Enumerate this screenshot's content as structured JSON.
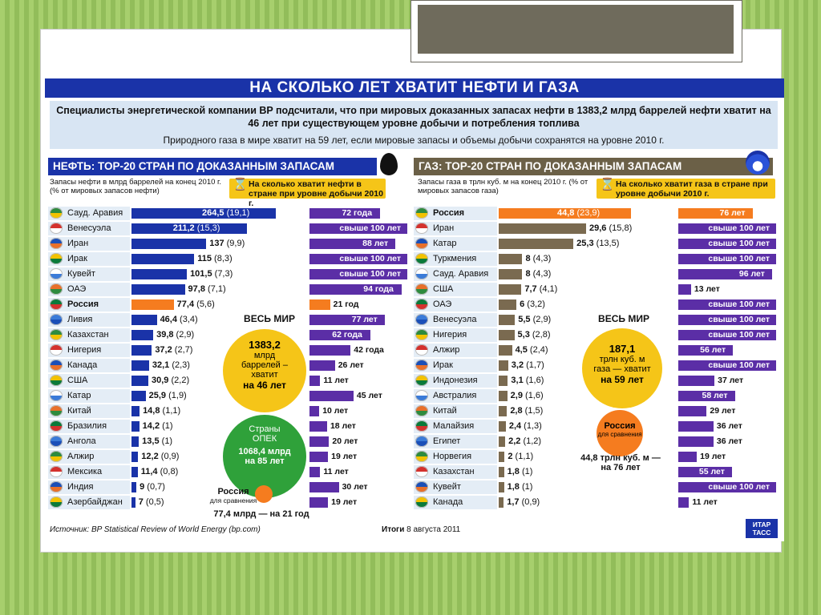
{
  "title": "НА СКОЛЬКО ЛЕТ ХВАТИТ НЕФТИ И ГАЗА",
  "intro": {
    "bold": "Специалисты энергетической компании BP подсчитали, что при мировых доказанных запасах нефти в 1383,2 млрд баррелей нефти хватит на 46 лет при существующем уровне добычи и потребления топлива",
    "plain": "Природного газа в мире хватит на 59 лет, если мировые запасы и объемы добычи сохранятся на уровне 2010 г."
  },
  "oil": {
    "header": "НЕФТЬ: TOP-20 СТРАН ПО ДОКАЗАННЫМ ЗАПАСАМ",
    "col_reserves": "Запасы нефти в млрд баррелей на конец 2010 г. (% от мировых запасов нефти)",
    "col_years": "На сколько хватит нефти в стране при уровне добычи 2010 г.",
    "world_label": "ВЕСЬ МИР",
    "world_circle": [
      "1383,2",
      "млрд",
      "баррелей –",
      "хватит",
      "на 46 лет"
    ],
    "opec_circle": [
      "Страны",
      "ОПЕК",
      "1068,4 млрд",
      "на 85 лет"
    ],
    "russia_compare": [
      "Россия",
      "для сравнения",
      "77,4 млрд — на 21 год"
    ]
  },
  "gas": {
    "header": "ГАЗ: TOP-20 СТРАН ПО ДОКАЗАННЫМ ЗАПАСАМ",
    "col_reserves": "Запасы газа в трлн куб. м на конец 2010 г. (% от мировых запасов газа)",
    "col_years": "На сколько хватит газа в стране при уровне добычи 2010 г.",
    "world_label": "ВЕСЬ МИР",
    "world_circle": [
      "187,1",
      "трлн куб. м",
      "газа — хватит",
      "на 59 лет"
    ],
    "russia_compare": [
      "Россия",
      "для сравнения",
      "44,8 трлн куб. м —",
      "на 76 лет"
    ]
  },
  "footer": {
    "source": "Источник: BP Statistical Review of World Energy (bp.com)",
    "pub_bold": "Итоги",
    "pub_date": "8 августа 2011",
    "agency": "ИТАР ТАСС"
  },
  "colors": {
    "blue": "#1a33a8",
    "orange": "#f57c1f",
    "purple": "#5b2ea6",
    "brown": "#7a6a50",
    "yellow": "#f5c518",
    "green": "#2fa13a"
  },
  "chart_data": [
    {
      "type": "bar",
      "title": "НЕФТЬ: TOP-20 СТРАН ПО ДОКАЗАННЫМ ЗАПАСАМ",
      "categories": [
        "Сауд. Аравия",
        "Венесуэла",
        "Иран",
        "Ирак",
        "Кувейт",
        "ОАЭ",
        "Россия",
        "Ливия",
        "Казахстан",
        "Нигерия",
        "Канада",
        "США",
        "Катар",
        "Китай",
        "Бразилия",
        "Ангола",
        "Алжир",
        "Мексика",
        "Индия",
        "Азербайджан"
      ],
      "series": [
        {
          "name": "Запасы нефти, млрд баррелей",
          "values": [
            264.5,
            211.2,
            137,
            115,
            101.5,
            97.8,
            77.4,
            46.4,
            39.8,
            37.2,
            32.1,
            30.9,
            25.9,
            14.8,
            14.2,
            13.5,
            12.2,
            11.4,
            9,
            7
          ],
          "labels": [
            "264,5",
            "211,2",
            "137",
            "115",
            "101,5",
            "97,8",
            "77,4",
            "46,4",
            "39,8",
            "37,2",
            "32,1",
            "30,9",
            "25,9",
            "14,8",
            "14,2",
            "13,5",
            "12,2",
            "11,4",
            "9",
            "7"
          ]
        },
        {
          "name": "% от мировых запасов",
          "values": [
            19.1,
            15.3,
            9.9,
            8.3,
            7.3,
            7.1,
            5.6,
            3.4,
            2.9,
            2.7,
            2.3,
            2.2,
            1.9,
            1.1,
            1,
            1,
            0.9,
            0.8,
            0.7,
            0.5
          ],
          "labels": [
            "(19,1)",
            "(15,3)",
            "(9,9)",
            "(8,3)",
            "(7,3)",
            "(7,1)",
            "(5,6)",
            "(3,4)",
            "(2,9)",
            "(2,7)",
            "(2,3)",
            "(2,2)",
            "(1,9)",
            "(1,1)",
            "(1)",
            "(1)",
            "(0,9)",
            "(0,8)",
            "(0,7)",
            "(0,5)"
          ]
        },
        {
          "name": "На сколько хватит, лет",
          "values": [
            72,
            100,
            88,
            100,
            100,
            94,
            21,
            77,
            62,
            42,
            26,
            11,
            45,
            10,
            18,
            20,
            19,
            11,
            30,
            19
          ],
          "labels": [
            "72 года",
            "свыше 100 лет",
            "88 лет",
            "свыше 100 лет",
            "свыше 100 лет",
            "94 года",
            "21 год",
            "77 лет",
            "62 года",
            "42 года",
            "26 лет",
            "11 лет",
            "45 лет",
            "10 лет",
            "18 лет",
            "20 лет",
            "19 лет",
            "11 лет",
            "30 лет",
            "19 лет"
          ]
        }
      ]
    },
    {
      "type": "bar",
      "title": "ГАЗ: TOP-20 СТРАН ПО ДОКАЗАННЫМ ЗАПАСАМ",
      "categories": [
        "Россия",
        "Иран",
        "Катар",
        "Туркмения",
        "Сауд. Аравия",
        "США",
        "ОАЭ",
        "Венесуэла",
        "Нигерия",
        "Алжир",
        "Ирак",
        "Индонезия",
        "Австралия",
        "Китай",
        "Малайзия",
        "Египет",
        "Норвегия",
        "Казахстан",
        "Кувейт",
        "Канада"
      ],
      "series": [
        {
          "name": "Запасы газа, трлн куб. м",
          "values": [
            44.8,
            29.6,
            25.3,
            8,
            8,
            7.7,
            6,
            5.5,
            5.3,
            4.5,
            3.2,
            3.1,
            2.9,
            2.8,
            2.4,
            2.2,
            2,
            1.8,
            1.8,
            1.7
          ],
          "labels": [
            "44,8",
            "29,6",
            "25,3",
            "8",
            "8",
            "7,7",
            "6",
            "5,5",
            "5,3",
            "4,5",
            "3,2",
            "3,1",
            "2,9",
            "2,8",
            "2,4",
            "2,2",
            "2",
            "1,8",
            "1,8",
            "1,7"
          ]
        },
        {
          "name": "% от мировых запасов",
          "values": [
            23.9,
            15.8,
            13.5,
            4.3,
            4.3,
            4.1,
            3.2,
            2.9,
            2.8,
            2.4,
            1.7,
            1.6,
            1.6,
            1.5,
            1.3,
            1.2,
            1.1,
            1,
            1,
            0.9
          ],
          "labels": [
            "(23,9)",
            "(15,8)",
            "(13,5)",
            "(4,3)",
            "(4,3)",
            "(4,1)",
            "(3,2)",
            "(2,9)",
            "(2,8)",
            "(2,4)",
            "(1,7)",
            "(1,6)",
            "(1,6)",
            "(1,5)",
            "(1,3)",
            "(1,2)",
            "(1,1)",
            "(1)",
            "(1)",
            "(0,9)"
          ]
        },
        {
          "name": "На сколько хватит, лет",
          "values": [
            76,
            100,
            100,
            100,
            96,
            13,
            100,
            100,
            100,
            56,
            100,
            37,
            58,
            29,
            36,
            36,
            19,
            55,
            100,
            11
          ],
          "labels": [
            "76 лет",
            "свыше 100 лет",
            "свыше 100 лет",
            "свыше 100 лет",
            "96 лет",
            "13 лет",
            "свыше 100 лет",
            "свыше 100 лет",
            "свыше 100 лет",
            "56 лет",
            "свыше 100 лет",
            "37 лет",
            "58 лет",
            "29 лет",
            "36 лет",
            "36 лет",
            "19 лет",
            "55 лет",
            "свыше 100 лет",
            "11 лет"
          ]
        }
      ]
    }
  ]
}
